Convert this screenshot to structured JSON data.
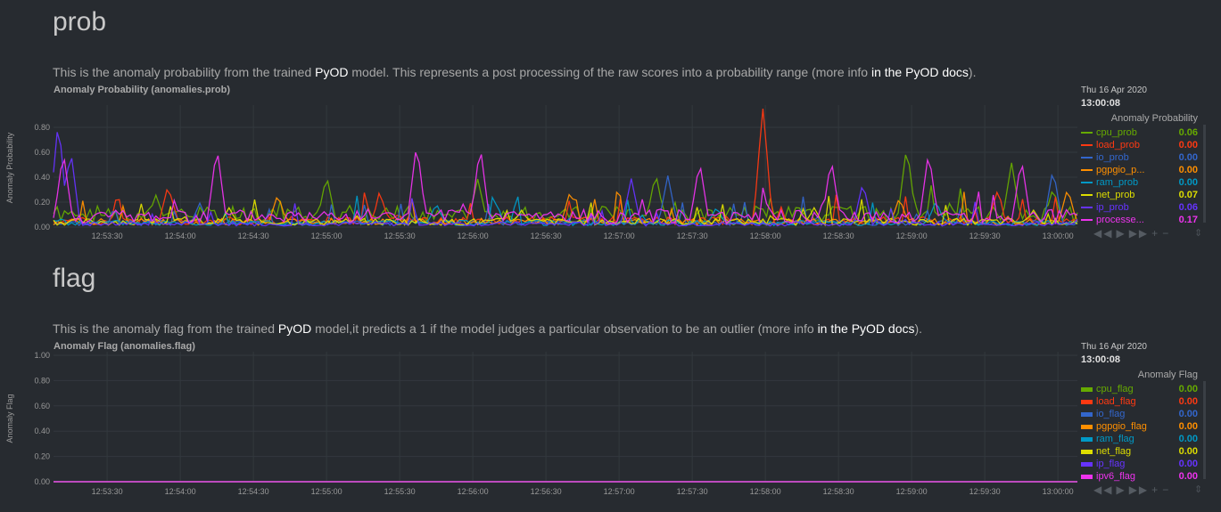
{
  "sections": [
    {
      "heading": "prob",
      "desc_pre": "This is the anomaly probability from the trained ",
      "desc_link1": "PyOD",
      "desc_mid": " model. This represents a post processing of the raw scores into a probability range (more info ",
      "desc_link2": "in the PyOD docs",
      "desc_post": ").",
      "chart_title": "Anomaly Probability (anomalies.prob)",
      "ylabel": "Anomaly Probability",
      "legend_date": "Thu 16 Apr 2020",
      "legend_time": "13:00:08",
      "legend_title": "Anomaly Probability"
    },
    {
      "heading": "flag",
      "desc_pre": "This is the anomaly flag from the trained ",
      "desc_link1": "PyOD",
      "desc_mid": " model,it predicts a 1 if the model judges a particular observation to be an outlier (more info ",
      "desc_link2": "in the PyOD docs",
      "desc_post": ").",
      "chart_title": "Anomaly Flag (anomalies.flag)",
      "ylabel": "Anomaly Flag",
      "legend_date": "Thu 16 Apr 2020",
      "legend_time": "13:00:08",
      "legend_title": "Anomaly Flag"
    }
  ],
  "controls": [
    "◀◀",
    "▶",
    "▶▶",
    "+",
    "−"
  ],
  "resize_icon": "⇕",
  "chart_data": [
    {
      "type": "line",
      "title": "Anomaly Probability (anomalies.prob)",
      "ylabel": "Anomaly Probability",
      "xlabel": "",
      "ylim": [
        0,
        0.95
      ],
      "yticks": [
        "0.00",
        "0.20",
        "0.40",
        "0.60",
        "0.80"
      ],
      "yvals": [
        0,
        0.2,
        0.4,
        0.6,
        0.8
      ],
      "x_start": "12:53:08",
      "x_end": "13:00:08",
      "xticks": [
        "12:53:30",
        "12:54:00",
        "12:54:30",
        "12:55:00",
        "12:55:30",
        "12:56:00",
        "12:56:30",
        "12:57:00",
        "12:57:30",
        "12:58:00",
        "12:58:30",
        "12:59:00",
        "12:59:30",
        "13:00:00"
      ],
      "grid": true,
      "legend_placement": "right",
      "series": [
        {
          "name": "cpu_prob",
          "color": "#66aa00",
          "value": "0.06",
          "base": 0.12,
          "spikes": [
            [
              "12:53:50",
              0.22
            ],
            [
              "12:55:00",
              0.38
            ],
            [
              "12:56:02",
              0.35
            ],
            [
              "12:57:15",
              0.4
            ],
            [
              "12:58:58",
              0.62
            ],
            [
              "12:59:41",
              0.48
            ],
            [
              "12:59:58",
              0.28
            ]
          ]
        },
        {
          "name": "load_prob",
          "color": "#fe3912",
          "value": "0.00",
          "base": 0.06,
          "spikes": [
            [
              "12:53:55",
              0.32
            ],
            [
              "12:55:22",
              0.25
            ],
            [
              "12:57:59",
              0.97
            ],
            [
              "12:59:35",
              0.26
            ]
          ]
        },
        {
          "name": "io_prob",
          "color": "#3366cc",
          "value": "0.00",
          "base": 0.04,
          "spikes": [
            [
              "12:54:08",
              0.18
            ],
            [
              "12:57:20",
              0.4
            ],
            [
              "12:59:58",
              0.46
            ]
          ]
        },
        {
          "name": "pgpgio_prob",
          "label": "pgpgio_p...",
          "color": "#ff8f00",
          "value": "0.00",
          "base": 0.05,
          "spikes": [
            [
              "12:54:40",
              0.25
            ],
            [
              "12:56:40",
              0.28
            ],
            [
              "12:58:55",
              0.22
            ],
            [
              "13:00:04",
              0.3
            ]
          ]
        },
        {
          "name": "ram_prob",
          "color": "#0099c6",
          "value": "0.00",
          "base": 0.04,
          "spikes": [
            [
              "12:55:45",
              0.18
            ],
            [
              "12:57:40",
              0.15
            ],
            [
              "12:59:10",
              0.2
            ]
          ]
        },
        {
          "name": "net_prob",
          "color": "#dddd00",
          "value": "0.07",
          "base": 0.05,
          "spikes": [
            [
              "12:54:20",
              0.14
            ],
            [
              "12:56:20",
              0.12
            ],
            [
              "12:58:20",
              0.14
            ],
            [
              "12:59:50",
              0.12
            ]
          ]
        },
        {
          "name": "ip_prob",
          "color": "#6633ff",
          "value": "0.06",
          "base": 0.03,
          "spikes": [
            [
              "12:53:10",
              0.86
            ],
            [
              "12:53:15",
              0.62
            ],
            [
              "12:57:05",
              0.38
            ],
            [
              "12:58:40",
              0.35
            ]
          ]
        },
        {
          "name": "processes_prob",
          "label": "processe...",
          "color": "#ee33ee",
          "value": "0.17",
          "base": 0.1,
          "spikes": [
            [
              "12:53:12",
              0.58
            ],
            [
              "12:54:15",
              0.62
            ],
            [
              "12:55:37",
              0.65
            ],
            [
              "12:56:03",
              0.63
            ],
            [
              "12:57:33",
              0.5
            ],
            [
              "12:58:27",
              0.52
            ],
            [
              "12:59:07",
              0.58
            ],
            [
              "12:59:45",
              0.52
            ]
          ]
        }
      ]
    },
    {
      "type": "line",
      "title": "Anomaly Flag (anomalies.flag)",
      "ylabel": "Anomaly Flag",
      "xlabel": "",
      "ylim": [
        0,
        1
      ],
      "yticks": [
        "0.00",
        "0.20",
        "0.40",
        "0.60",
        "0.80",
        "1.00"
      ],
      "yvals": [
        0,
        0.2,
        0.4,
        0.6,
        0.8,
        1.0
      ],
      "x_start": "12:53:08",
      "x_end": "13:00:08",
      "xticks": [
        "12:53:30",
        "12:54:00",
        "12:54:30",
        "12:55:00",
        "12:55:30",
        "12:56:00",
        "12:56:30",
        "12:57:00",
        "12:57:30",
        "12:58:00",
        "12:58:30",
        "12:59:00",
        "12:59:30",
        "13:00:00"
      ],
      "grid": true,
      "legend_placement": "right",
      "series": [
        {
          "name": "cpu_flag",
          "color": "#66aa00",
          "value": "0.00",
          "constant": 0
        },
        {
          "name": "load_flag",
          "color": "#fe3912",
          "value": "0.00",
          "constant": 0
        },
        {
          "name": "io_flag",
          "color": "#3366cc",
          "value": "0.00",
          "constant": 0
        },
        {
          "name": "pgpgio_flag",
          "color": "#ff8f00",
          "value": "0.00",
          "constant": 0
        },
        {
          "name": "ram_flag",
          "color": "#0099c6",
          "value": "0.00",
          "constant": 0
        },
        {
          "name": "net_flag",
          "color": "#dddd00",
          "value": "0.00",
          "constant": 0
        },
        {
          "name": "ip_flag",
          "color": "#6633ff",
          "value": "0.00",
          "constant": 0
        },
        {
          "name": "ipv6_flag",
          "color": "#ee33ee",
          "value": "0.00",
          "constant": 0
        }
      ]
    }
  ]
}
